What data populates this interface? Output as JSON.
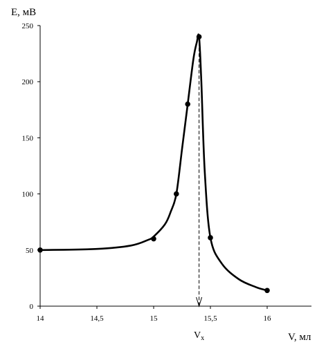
{
  "chart_data": {
    "type": "line",
    "title": "",
    "ylabel": "E, мВ",
    "xlabel": "V, мл",
    "xlim": [
      14,
      16.4
    ],
    "ylim": [
      0,
      250
    ],
    "grid": false,
    "x_ticks": [
      14,
      14.5,
      15,
      15.5,
      16
    ],
    "x_tick_labels": [
      "14",
      "14,5",
      "15",
      "15,5",
      "16"
    ],
    "y_ticks": [
      0,
      50,
      100,
      150,
      200,
      250
    ],
    "y_tick_labels": [
      "0",
      "50",
      "100",
      "150",
      "200",
      "250"
    ],
    "points": {
      "x": [
        14.0,
        15.0,
        15.2,
        15.3,
        15.4,
        15.5,
        16.0
      ],
      "y": [
        50,
        60,
        100,
        180,
        240,
        61,
        14
      ]
    },
    "curve": {
      "x": [
        14.0,
        14.5,
        14.8,
        14.95,
        15.0,
        15.1,
        15.15,
        15.2,
        15.25,
        15.3,
        15.35,
        15.38,
        15.4,
        15.42,
        15.45,
        15.5,
        15.6,
        15.75,
        15.9,
        16.0
      ],
      "y": [
        50,
        51,
        54,
        59,
        62,
        73,
        84,
        100,
        140,
        180,
        220,
        235,
        240,
        200,
        120,
        61,
        38,
        24,
        17,
        14
      ]
    },
    "annotations": [
      {
        "type": "vertical_dashed_line",
        "x": 15.4,
        "label": "Vx"
      }
    ],
    "line_color": "#000000"
  }
}
